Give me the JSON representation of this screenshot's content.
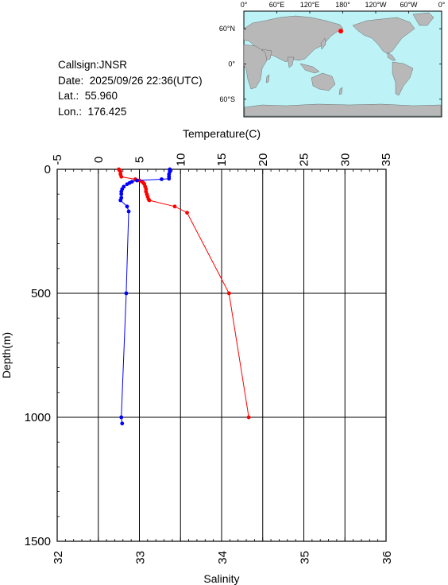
{
  "station": {
    "callsign": "Callsign:JNSR",
    "date": "Date:  2025/09/26 22:36(UTC)",
    "lat": "Lat.:  55.960",
    "lon": "Lon.:  176.425"
  },
  "colors": {
    "temperature": "#ff0000",
    "salinity": "#0000ff",
    "land": "#b8b8b8",
    "ocean": "#bdf3f6",
    "marker": "#ff0000"
  },
  "map": {
    "lon_labels": [
      "0°",
      "60°E",
      "120°E",
      "180°",
      "120°W",
      "60°W",
      "0°"
    ],
    "lat_labels": [
      "60°N",
      "0°",
      "60°S"
    ],
    "marker_lon": 176.425,
    "marker_lat": 55.96
  },
  "chart_data": {
    "type": "line",
    "top_axis_label": "Temperature(C)",
    "bottom_axis_label": "Salinity",
    "ylabel": "Depth(m)",
    "temperature_ticks": [
      -5,
      0,
      5,
      10,
      15,
      20,
      25,
      30,
      35
    ],
    "salinity_ticks": [
      32,
      33,
      34,
      35,
      36
    ],
    "depth_ticks": [
      0,
      500,
      1000,
      1500
    ],
    "temperature_range": [
      -5,
      35
    ],
    "salinity_range": [
      32,
      36
    ],
    "depth_range": [
      0,
      1500
    ],
    "grid": true,
    "series": [
      {
        "quantity": "temperature",
        "color": "#ff0000",
        "depth": [
          0,
          5,
          10,
          20,
          30,
          40,
          45,
          50,
          55,
          60,
          70,
          80,
          90,
          100,
          110,
          120,
          125,
          150,
          175,
          500,
          1000
        ],
        "values": [
          2.5,
          2.6,
          2.7,
          2.7,
          2.8,
          4.5,
          5.0,
          5.3,
          5.5,
          5.6,
          5.7,
          5.8,
          5.8,
          5.9,
          6.0,
          6.1,
          6.2,
          9.3,
          10.8,
          15.9,
          18.3
        ]
      },
      {
        "quantity": "salinity",
        "color": "#0000ff",
        "depth": [
          0,
          5,
          10,
          20,
          30,
          38,
          40,
          45,
          50,
          55,
          60,
          70,
          80,
          90,
          100,
          115,
          125,
          150,
          170,
          500,
          1000,
          1025
        ],
        "values": [
          33.37,
          33.37,
          33.37,
          33.36,
          33.36,
          33.36,
          33.27,
          32.97,
          32.91,
          32.88,
          32.85,
          32.81,
          32.79,
          32.78,
          32.78,
          32.78,
          32.77,
          32.85,
          32.87,
          32.84,
          32.78,
          32.79
        ]
      }
    ]
  }
}
